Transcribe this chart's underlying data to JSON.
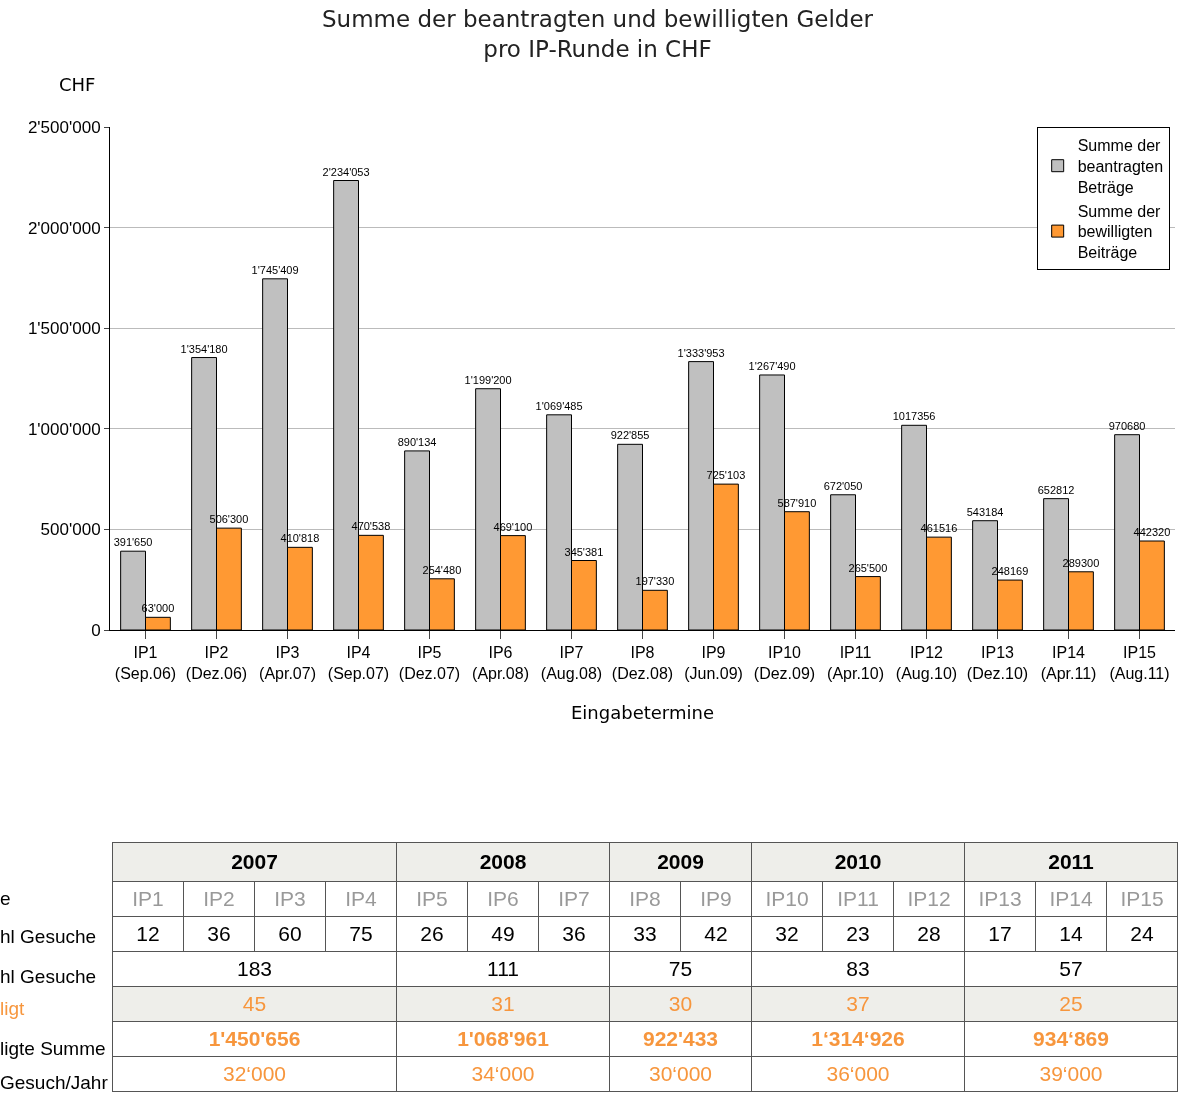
{
  "chart_data": [
    {
      "type": "bar",
      "title": "Summe der beantragten und bewilligten Gelder\npro IP-Runde in CHF",
      "ylabel": "CHF",
      "xlabel": "Eingabetermine",
      "categories": [
        "IP1\n(Sep.06)",
        "IP2\n(Dez.06)",
        "IP3\n(Apr.07)",
        "IP4\n(Sep.07)",
        "IP5\n(Dez.07)",
        "IP6\n(Apr.08)",
        "IP7\n(Aug.08)",
        "IP8\n(Dez.08)",
        "IP9\n(Jun.09)",
        "IP10\n(Dez.09)",
        "IP11\n(Apr.10)",
        "IP12\n(Aug.10)",
        "IP13\n(Dez.10)",
        "IP14\n(Apr.11)",
        "IP15\n(Aug.11)"
      ],
      "series": [
        {
          "name": "Summe der beantragten Beträge",
          "color": "#c0c0c0",
          "values": [
            391650,
            1354180,
            1745409,
            2234053,
            890134,
            1199200,
            1069485,
            922855,
            1333953,
            1267490,
            672050,
            1017356,
            543184,
            652812,
            970680
          ],
          "value_labels": [
            "391'650",
            "1'354'180",
            "1'745'409",
            "2'234'053",
            "890'134",
            "1'199'200",
            "1'069'485",
            "922'855",
            "1'333'953",
            "1'267'490",
            "672'050",
            "1017356",
            "543184",
            "652812",
            "970680"
          ]
        },
        {
          "name": "Summe der bewilligten Beiträge",
          "color": "#ff9933",
          "values": [
            63000,
            506300,
            410818,
            470538,
            254480,
            469100,
            345381,
            197330,
            725103,
            587910,
            265500,
            461516,
            248169,
            289300,
            442320
          ],
          "value_labels": [
            "63'000",
            "506'300",
            "410'818",
            "470'538",
            "254'480",
            "469'100",
            "345'381",
            "197'330",
            "725'103",
            "587'910",
            "265'500",
            "461516",
            "248169",
            "289300",
            "442320"
          ]
        }
      ],
      "ylim": [
        0,
        2500000
      ],
      "yticks": [
        0,
        {
          "value": 500000,
          "label": "500'000"
        },
        {
          "value": 1000000,
          "label": "1'000'000"
        },
        {
          "value": 1500000,
          "label": "1'500'000"
        },
        {
          "value": 2000000,
          "label": "2'000'000"
        },
        {
          "value": 2500000,
          "label": "2'500'000"
        }
      ],
      "grid": "y",
      "legend": "top right"
    },
    {
      "type": "other",
      "annotations": [
        "e",
        "hl Gesuche",
        "hl Gesuche",
        "ligt",
        "ligte Summe",
        "Gesuch/Jahr",
        "2007",
        "2008",
        "2009",
        "2010",
        "2011",
        "IP1",
        "IP2",
        "IP3",
        "IP4",
        "IP5",
        "IP6",
        "IP7",
        "IP8",
        "IP9",
        "IP10",
        "IP11",
        "IP12",
        "IP13",
        "IP14",
        "IP15",
        "12",
        "36",
        "60",
        "75",
        "26",
        "49",
        "36",
        "33",
        "42",
        "32",
        "23",
        "28",
        "17",
        "14",
        "24",
        "183",
        "111",
        "75",
        "83",
        "57",
        "45",
        "31",
        "30",
        "37",
        "25",
        "1'450'656",
        "1'068'961",
        "922'433",
        "1‘314‘926",
        "934‘869",
        "32‘000",
        "34‘000",
        "30‘000",
        "36‘000",
        "39‘000"
      ]
    }
  ]
}
